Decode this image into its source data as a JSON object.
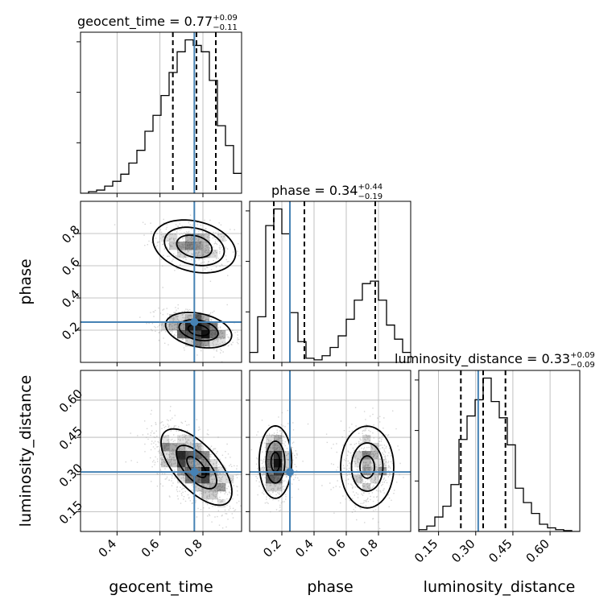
{
  "chart_data": {
    "type": "scatter",
    "parameters": [
      "geocent_time",
      "phase",
      "luminosity_distance"
    ],
    "axis_labels": {
      "geocent_time": "geocent_time",
      "phase": "phase",
      "luminosity_distance": "luminosity_distance"
    },
    "ranges": {
      "geocent_time": [
        0.23,
        0.98
      ],
      "phase": [
        0.0,
        1.0
      ],
      "luminosity_distance": [
        0.07,
        0.72
      ]
    },
    "ticks": {
      "geocent_time": [
        "0.4",
        "0.6",
        "0.8"
      ],
      "phase": [
        "0.2",
        "0.4",
        "0.6",
        "0.8"
      ],
      "luminosity_distance": [
        "0.15",
        "0.30",
        "0.45",
        "0.60"
      ]
    },
    "truths": {
      "geocent_time": 0.76,
      "phase": 0.25,
      "luminosity_distance": 0.31
    },
    "truth_color": "#4682b4",
    "titles": {
      "geocent_time": {
        "name": "geocent_time",
        "median": "0.77",
        "plus": "+0.09",
        "minus": "−0.11"
      },
      "phase": {
        "name": "phase",
        "median": "0.34",
        "plus": "+0.44",
        "minus": "−0.19"
      },
      "luminosity_distance": {
        "name": "luminosity_distance",
        "median": "0.33",
        "plus": "+0.09",
        "minus": "−0.09"
      }
    },
    "quantiles": {
      "geocent_time": [
        0.66,
        0.77,
        0.86
      ],
      "phase": [
        0.15,
        0.34,
        0.78
      ],
      "luminosity_distance": [
        0.24,
        0.33,
        0.42
      ]
    },
    "histograms": {
      "geocent_time": {
        "edges": [
          0.23,
          0.2675,
          0.305,
          0.3425,
          0.38,
          0.4175,
          0.455,
          0.4925,
          0.53,
          0.5675,
          0.605,
          0.6425,
          0.68,
          0.7175,
          0.755,
          0.7925,
          0.83,
          0.8675,
          0.905,
          0.9425,
          0.98
        ],
        "counts": [
          0,
          2,
          4,
          9,
          15,
          24,
          38,
          54,
          78,
          98,
          123,
          152,
          178,
          193,
          186,
          178,
          142,
          85,
          60,
          25
        ]
      },
      "phase": {
        "edges": [
          0.0,
          0.05,
          0.1,
          0.15,
          0.2,
          0.25,
          0.3,
          0.35,
          0.4,
          0.45,
          0.5,
          0.55,
          0.6,
          0.65,
          0.7,
          0.75,
          0.8,
          0.85,
          0.9,
          0.95,
          1.0
        ],
        "counts": [
          12,
          55,
          165,
          185,
          155,
          60,
          25,
          5,
          3,
          8,
          18,
          32,
          52,
          75,
          95,
          98,
          75,
          45,
          28,
          12
        ]
      },
      "luminosity_distance": {
        "edges": [
          0.07,
          0.1025,
          0.135,
          0.1675,
          0.2,
          0.2325,
          0.265,
          0.2975,
          0.33,
          0.3625,
          0.395,
          0.4275,
          0.46,
          0.4925,
          0.525,
          0.5575,
          0.59,
          0.6225,
          0.655,
          0.6875,
          0.72
        ],
        "counts": [
          2,
          6,
          16,
          28,
          52,
          102,
          128,
          146,
          170,
          144,
          126,
          96,
          48,
          32,
          20,
          8,
          4,
          2,
          1,
          0
        ]
      }
    },
    "sample_clusters": [
      {
        "x": "geocent_time",
        "y": "phase",
        "mx": 0.75,
        "my": 0.73,
        "sx": 0.09,
        "sy": 0.075,
        "rho": -0.3,
        "n": 450
      },
      {
        "x": "geocent_time",
        "y": "phase",
        "mx": 0.77,
        "my": 0.2,
        "sx": 0.085,
        "sy": 0.06,
        "rho": -0.35,
        "n": 650
      },
      {
        "x": "geocent_time",
        "y": "luminosity_distance",
        "mx": 0.76,
        "my": 0.33,
        "sx": 0.1,
        "sy": 0.085,
        "rho": -0.6,
        "n": 1100
      },
      {
        "x": "phase",
        "y": "luminosity_distance",
        "mx": 0.16,
        "my": 0.34,
        "sx": 0.055,
        "sy": 0.075,
        "rho": 0.0,
        "n": 550
      },
      {
        "x": "phase",
        "y": "luminosity_distance",
        "mx": 0.73,
        "my": 0.33,
        "sx": 0.085,
        "sy": 0.08,
        "rho": 0.0,
        "n": 550
      }
    ],
    "contours": [
      {
        "x": "geocent_time",
        "y": "phase",
        "mx": 0.76,
        "my": 0.72,
        "sx": 0.082,
        "sy": 0.07,
        "rho": -0.25,
        "levels": [
          1.0,
          1.7,
          2.35
        ]
      },
      {
        "x": "geocent_time",
        "y": "phase",
        "mx": 0.78,
        "my": 0.2,
        "sx": 0.07,
        "sy": 0.05,
        "rho": -0.3,
        "levels": [
          0.7,
          1.3,
          2.2
        ]
      },
      {
        "x": "geocent_time",
        "y": "luminosity_distance",
        "mx": 0.77,
        "my": 0.33,
        "sx": 0.075,
        "sy": 0.07,
        "rho": -0.65,
        "levels": [
          0.6,
          1.25,
          2.2
        ]
      },
      {
        "x": "phase",
        "y": "luminosity_distance",
        "mx": 0.16,
        "my": 0.35,
        "sx": 0.045,
        "sy": 0.065,
        "rho": 0.0,
        "levels": [
          0.6,
          1.3,
          2.25
        ]
      },
      {
        "x": "phase",
        "y": "luminosity_distance",
        "mx": 0.73,
        "my": 0.33,
        "sx": 0.075,
        "sy": 0.075,
        "rho": 0.0,
        "levels": [
          0.6,
          1.3,
          2.2
        ]
      }
    ],
    "grid": true,
    "colors": {
      "samples": "#a0a0a0",
      "density": "#000000",
      "hist": "#000000",
      "truth": "#4682b4"
    }
  }
}
